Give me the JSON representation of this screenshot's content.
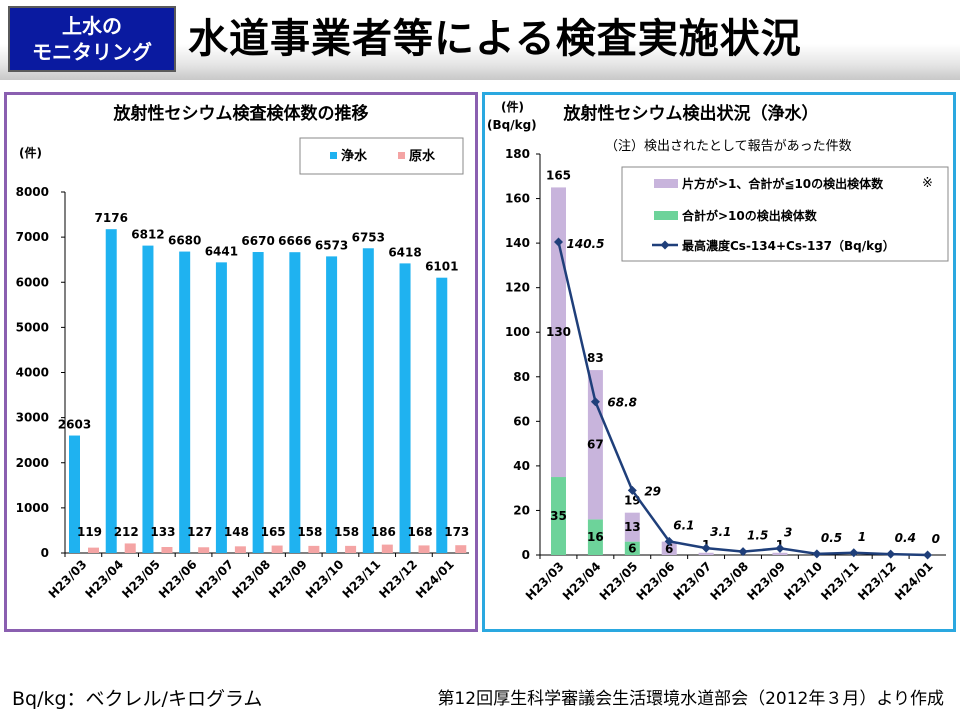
{
  "header": {
    "badge_line1": "上水の",
    "badge_line2": "モニタリング",
    "title": "水道事業者等による検査実施状況"
  },
  "footer": {
    "left_note": "Bq/kg：ベクレル/キログラム",
    "source": "第12回厚生科学審議会生活環境水道部会（2012年３月）より作成"
  },
  "colors": {
    "badge_bg": "#0a1aa0",
    "left_border": "#8a5fb0",
    "right_border": "#2aa8e0",
    "jousui": "#1fb2f0",
    "gensui": "#f4a4a4",
    "partial": "#c8b4dc",
    "over10": "#6dd39a",
    "line": "#1f3f7a"
  },
  "chart_data": [
    {
      "type": "bar",
      "title": "放射性セシウム検査検体数の推移",
      "ylabel": "(件)",
      "xlabel": "",
      "ylim": [
        0,
        8000
      ],
      "yticks": [
        0,
        1000,
        2000,
        3000,
        4000,
        5000,
        6000,
        7000,
        8000
      ],
      "legend_position": "top-right",
      "categories": [
        "H23/03",
        "H23/04",
        "H23/05",
        "H23/06",
        "H23/07",
        "H23/08",
        "H23/09",
        "H23/10",
        "H23/11",
        "H23/12",
        "H24/01"
      ],
      "series": [
        {
          "name": "浄水",
          "values": [
            2603,
            7176,
            6812,
            6680,
            6441,
            6670,
            6666,
            6573,
            6753,
            6418,
            6101
          ]
        },
        {
          "name": "原水",
          "values": [
            119,
            212,
            133,
            127,
            148,
            165,
            158,
            158,
            186,
            168,
            173
          ]
        }
      ]
    },
    {
      "type": "bar",
      "title": "放射性セシウム検出状況（浄水）",
      "subtitle": "（注）検出されたとして報告があった件数",
      "ylabel_line1": "(件)",
      "ylabel_line2": "(Bq/kg)",
      "ylim": [
        0,
        180
      ],
      "yticks": [
        0,
        20,
        40,
        60,
        80,
        100,
        120,
        140,
        160,
        180
      ],
      "legend_position": "top-right",
      "categories": [
        "H23/03",
        "H23/04",
        "H23/05",
        "H23/06",
        "H23/07",
        "H23/08",
        "H23/09",
        "H23/10",
        "H23/11",
        "H23/12",
        "H24/01"
      ],
      "stack_series": [
        {
          "name": "合計が>10の検出検体数",
          "values": [
            35,
            16,
            6,
            0,
            0,
            0,
            0,
            0,
            0,
            0,
            0
          ],
          "labels": [
            "35",
            "16",
            "6",
            "",
            "",
            "",
            "",
            "",
            "",
            "",
            ""
          ]
        },
        {
          "name": "片方が>1、合計が≦10の検出検体数",
          "name_suffix": "※",
          "values": [
            130,
            67,
            13,
            6,
            1,
            0,
            1,
            0,
            0,
            0,
            0
          ],
          "labels": [
            "130",
            "67",
            "13",
            "6",
            "1",
            "",
            "1",
            "",
            "",
            "",
            ""
          ]
        }
      ],
      "totals": [
        "165",
        "83",
        "19",
        "",
        "",
        "",
        "",
        "",
        "",
        "",
        ""
      ],
      "line_series": {
        "name": "最高濃度Cs-134+Cs-137（Bq/kg）",
        "values": [
          140.5,
          68.8,
          29,
          6.1,
          3.1,
          1.5,
          3,
          0.5,
          1,
          0.4,
          0
        ],
        "labels": [
          "140.5",
          "68.8",
          "29",
          "6.1",
          "3.1",
          "1.5",
          "3",
          "0.5",
          "1",
          "0.4",
          "0"
        ]
      }
    }
  ]
}
